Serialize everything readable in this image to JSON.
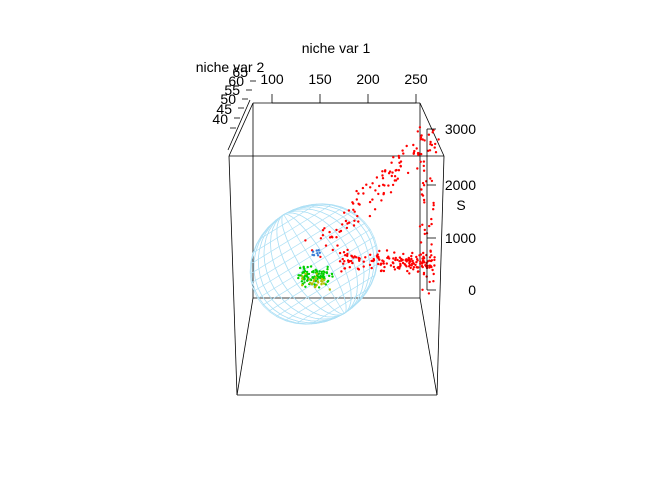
{
  "chart_data": {
    "type": "scatter",
    "subtype": "3d-scatter-with-ellipsoid",
    "title": "",
    "axes": {
      "x": {
        "label": "niche var 1",
        "ticks": [
          "100",
          "150",
          "200",
          "250"
        ],
        "range": [
          80,
          260
        ]
      },
      "y": {
        "label": "niche var 2",
        "ticks": [
          "40",
          "45",
          "50",
          "55",
          "60",
          "65"
        ],
        "range": [
          38,
          66
        ]
      },
      "z": {
        "label": "S",
        "ticks": [
          "0",
          "1000",
          "2000",
          "3000"
        ],
        "range": [
          0,
          3000
        ]
      }
    },
    "grid": false,
    "legend": "none",
    "ellipsoid": {
      "color": "#aee0f5"
    },
    "series": [
      {
        "color": "#ff0000",
        "approx_count": 320,
        "x_range": [
          165,
          260
        ],
        "z_range": [
          0,
          3000
        ]
      },
      {
        "color": "#00d000",
        "approx_count": 90,
        "x_range": [
          110,
          160
        ],
        "z_range": [
          0,
          500
        ]
      },
      {
        "color": "#b0c000",
        "approx_count": 25,
        "x_range": [
          120,
          165
        ],
        "z_range": [
          0,
          600
        ]
      },
      {
        "color": "#3a7bd5",
        "approx_count": 8,
        "x_range": [
          130,
          150
        ],
        "z_range": [
          300,
          700
        ]
      }
    ]
  }
}
